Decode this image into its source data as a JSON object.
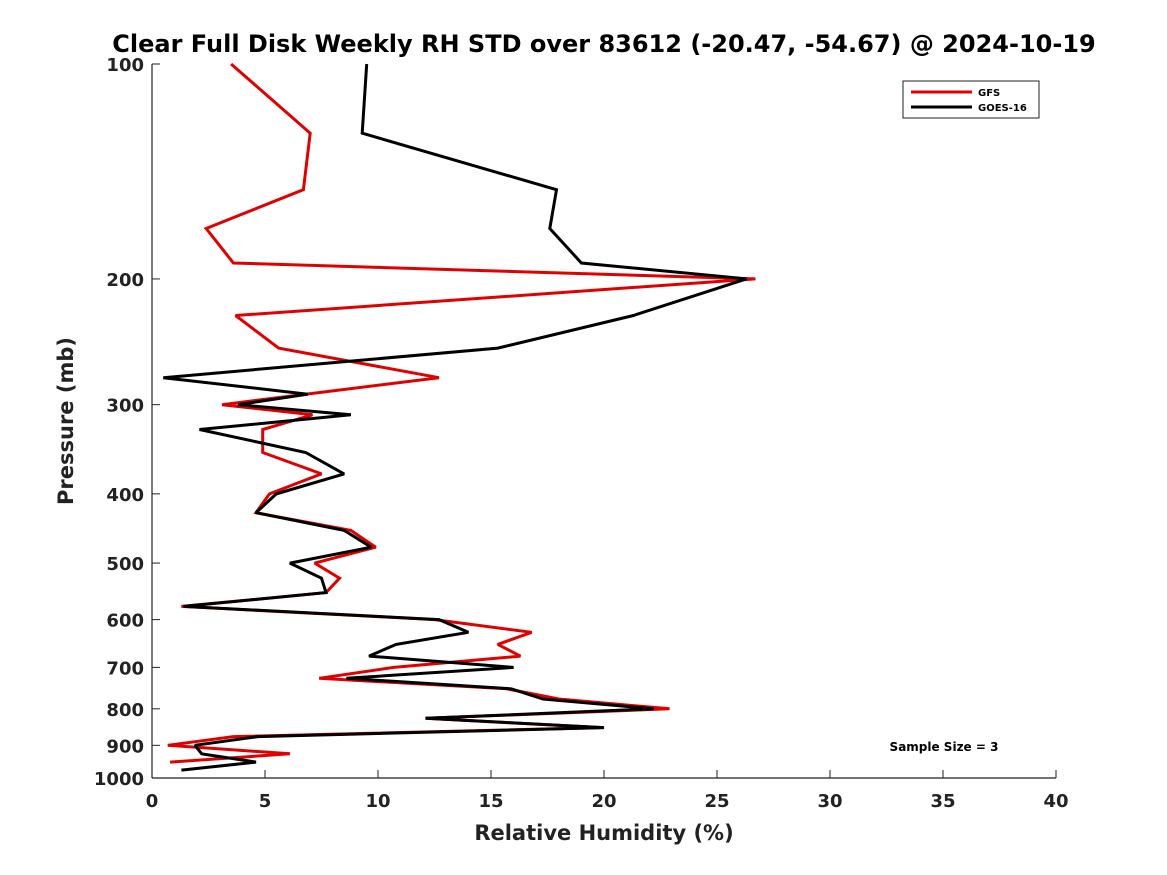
{
  "chart_data": {
    "type": "line",
    "title": "Clear Full Disk Weekly RH STD over 83612 (-20.47, -54.67) @ 2024-10-19",
    "xlabel": "Relative Humidity (%)",
    "ylabel": "Pressure (mb)",
    "xlim": [
      0,
      40
    ],
    "ylim": [
      100,
      1000
    ],
    "yscale": "log",
    "y_reversed": true,
    "x_ticks": [
      0,
      5,
      10,
      15,
      20,
      25,
      30,
      35,
      40
    ],
    "y_ticks": [
      100,
      200,
      300,
      400,
      500,
      600,
      700,
      800,
      900,
      1000
    ],
    "grid": false,
    "legend_position": "top-right",
    "annotation": "Sample Size = 3",
    "series": [
      {
        "name": "GFS",
        "color": "#e00000",
        "points": [
          [
            3.5,
            100
          ],
          [
            7.0,
            125
          ],
          [
            6.7,
            150
          ],
          [
            2.4,
            170
          ],
          [
            3.6,
            190
          ],
          [
            26.7,
            200
          ],
          [
            3.7,
            225
          ],
          [
            5.6,
            250
          ],
          [
            12.7,
            275
          ],
          [
            6.8,
            290
          ],
          [
            3.1,
            300
          ],
          [
            7.1,
            310
          ],
          [
            4.9,
            325
          ],
          [
            4.9,
            350
          ],
          [
            7.5,
            375
          ],
          [
            5.2,
            400
          ],
          [
            4.6,
            425
          ],
          [
            8.8,
            450
          ],
          [
            9.9,
            475
          ],
          [
            7.2,
            500
          ],
          [
            8.3,
            525
          ],
          [
            7.7,
            550
          ],
          [
            1.3,
            575
          ],
          [
            12.5,
            600
          ],
          [
            16.8,
            625
          ],
          [
            15.3,
            650
          ],
          [
            16.3,
            675
          ],
          [
            10.7,
            700
          ],
          [
            7.4,
            725
          ],
          [
            15.7,
            750
          ],
          [
            18.0,
            775
          ],
          [
            22.9,
            800
          ],
          [
            12.1,
            825
          ],
          [
            19.9,
            850
          ],
          [
            3.6,
            875
          ],
          [
            0.7,
            900
          ],
          [
            6.1,
            925
          ],
          [
            0.8,
            950
          ]
        ]
      },
      {
        "name": "GOES-16",
        "color": "#000000",
        "points": [
          [
            9.5,
            100
          ],
          [
            9.3,
            125
          ],
          [
            17.9,
            150
          ],
          [
            17.6,
            170
          ],
          [
            19.0,
            190
          ],
          [
            26.3,
            200
          ],
          [
            21.3,
            225
          ],
          [
            15.3,
            250
          ],
          [
            0.5,
            275
          ],
          [
            6.9,
            290
          ],
          [
            3.8,
            300
          ],
          [
            8.8,
            310
          ],
          [
            2.1,
            325
          ],
          [
            6.8,
            350
          ],
          [
            8.5,
            375
          ],
          [
            5.5,
            400
          ],
          [
            4.6,
            425
          ],
          [
            8.5,
            450
          ],
          [
            9.7,
            475
          ],
          [
            6.1,
            500
          ],
          [
            7.5,
            525
          ],
          [
            7.7,
            550
          ],
          [
            1.4,
            575
          ],
          [
            12.7,
            600
          ],
          [
            14.0,
            625
          ],
          [
            10.8,
            650
          ],
          [
            9.6,
            675
          ],
          [
            16.0,
            700
          ],
          [
            8.6,
            725
          ],
          [
            15.9,
            750
          ],
          [
            17.3,
            775
          ],
          [
            22.2,
            800
          ],
          [
            12.1,
            825
          ],
          [
            20.0,
            850
          ],
          [
            4.7,
            875
          ],
          [
            1.9,
            900
          ],
          [
            2.2,
            925
          ],
          [
            4.6,
            950
          ],
          [
            1.3,
            975
          ]
        ]
      }
    ]
  }
}
